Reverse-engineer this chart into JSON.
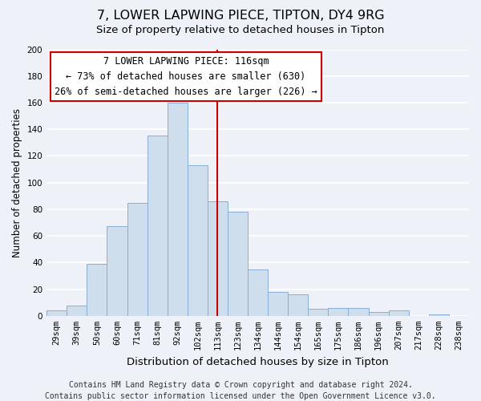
{
  "title": "7, LOWER LAPWING PIECE, TIPTON, DY4 9RG",
  "subtitle": "Size of property relative to detached houses in Tipton",
  "xlabel": "Distribution of detached houses by size in Tipton",
  "ylabel": "Number of detached properties",
  "bin_labels": [
    "29sqm",
    "39sqm",
    "50sqm",
    "60sqm",
    "71sqm",
    "81sqm",
    "92sqm",
    "102sqm",
    "113sqm",
    "123sqm",
    "134sqm",
    "144sqm",
    "154sqm",
    "165sqm",
    "175sqm",
    "186sqm",
    "196sqm",
    "207sqm",
    "217sqm",
    "228sqm",
    "238sqm"
  ],
  "bar_heights": [
    4,
    8,
    39,
    67,
    85,
    135,
    160,
    113,
    86,
    78,
    35,
    18,
    16,
    5,
    6,
    6,
    3,
    4,
    0,
    1,
    0
  ],
  "bar_color": "#cfdeed",
  "bar_edge_color": "#8aaed4",
  "vline_x": 8,
  "vline_color": "#cc0000",
  "annotation_title": "7 LOWER LAPWING PIECE: 116sqm",
  "annotation_line1": "← 73% of detached houses are smaller (630)",
  "annotation_line2": "26% of semi-detached houses are larger (226) →",
  "annotation_box_color": "#ffffff",
  "annotation_box_edge": "#cc0000",
  "footer_line1": "Contains HM Land Registry data © Crown copyright and database right 2024.",
  "footer_line2": "Contains public sector information licensed under the Open Government Licence v3.0.",
  "ylim": [
    0,
    200
  ],
  "yticks": [
    0,
    20,
    40,
    60,
    80,
    100,
    120,
    140,
    160,
    180,
    200
  ],
  "background_color": "#eef2f8",
  "grid_color": "#ffffff",
  "title_fontsize": 11.5,
  "subtitle_fontsize": 9.5,
  "xlabel_fontsize": 9.5,
  "ylabel_fontsize": 8.5,
  "tick_fontsize": 7.5,
  "footer_fontsize": 7.0,
  "annotation_fontsize": 8.5
}
